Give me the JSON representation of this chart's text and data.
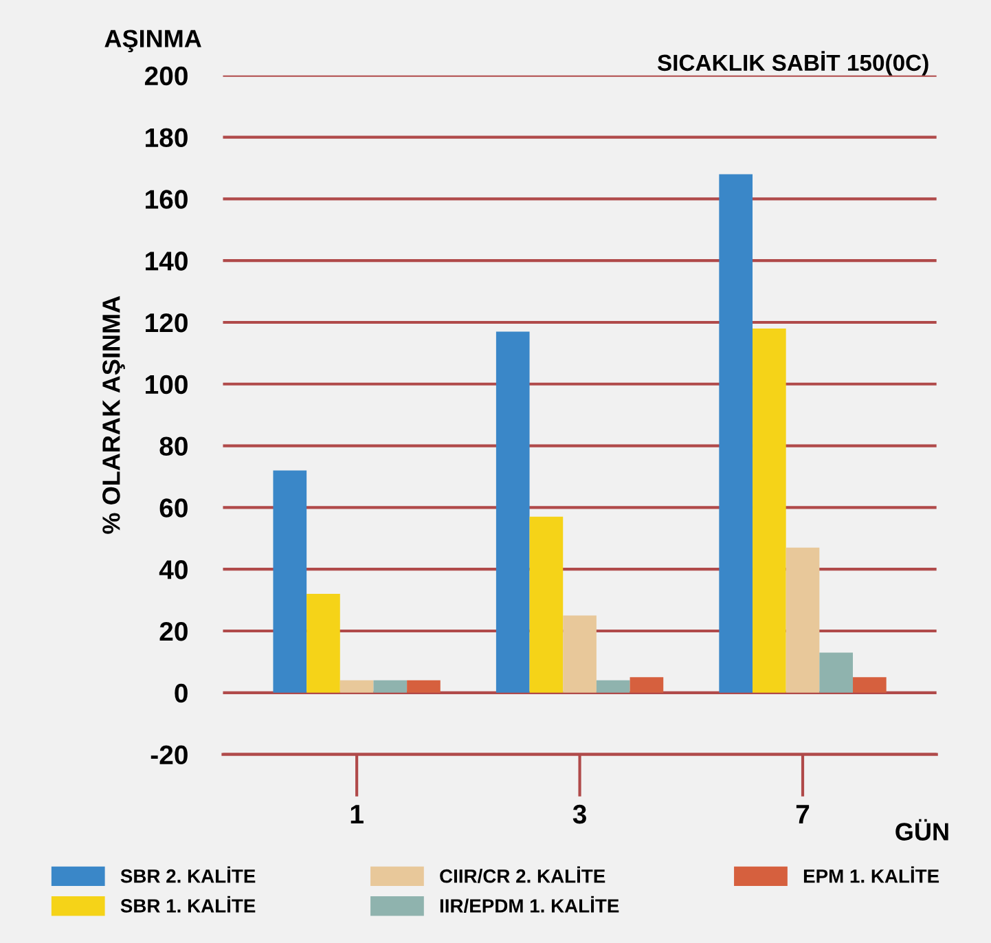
{
  "chart_data": {
    "type": "bar",
    "title": "AŞINMA",
    "subtitle": "SICAKLIK SABİT 150(0C)",
    "ylabel": "% OLARAK AŞINMA",
    "xlabel": "GÜN",
    "categories": [
      "1",
      "3",
      "7"
    ],
    "series": [
      {
        "name": "SBR 2. KALİTE",
        "color": "#3a87c8",
        "values": [
          72,
          117,
          168
        ]
      },
      {
        "name": "SBR 1. KALİTE",
        "color": "#f5d318",
        "values": [
          32,
          57,
          118
        ]
      },
      {
        "name": "CIIR/CR 2. KALİTE",
        "color": "#e8c89a",
        "values": [
          4,
          25,
          47
        ]
      },
      {
        "name": "IIR/EPDM 1. KALİTE",
        "color": "#8fb3ae",
        "values": [
          4,
          4,
          13
        ]
      },
      {
        "name": "EPM 1. KALİTE",
        "color": "#d6603e",
        "values": [
          4,
          5,
          5
        ]
      }
    ],
    "ylim": [
      -20,
      200
    ],
    "yticks": [
      -20,
      0,
      20,
      40,
      60,
      80,
      100,
      120,
      140,
      160,
      180,
      200
    ],
    "grid": "y",
    "legend": "bottom"
  }
}
